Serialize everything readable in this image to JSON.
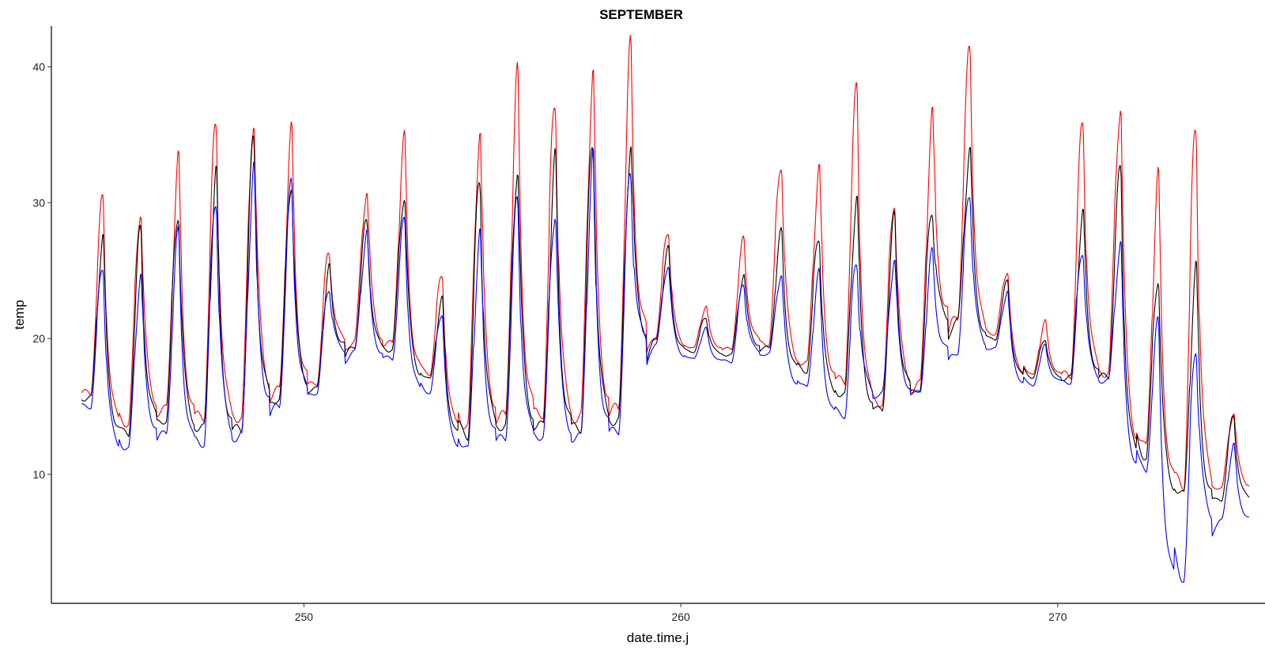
{
  "chart_data": {
    "type": "line",
    "title": "SEPTEMBER",
    "xlabel": "date.time.j",
    "ylabel": "temp",
    "xlim": [
      243.3,
      275.5
    ],
    "ylim": [
      0.5,
      43
    ],
    "x_ticks": [
      250,
      260,
      270
    ],
    "y_ticks": [
      10,
      20,
      30,
      40
    ],
    "grid": false,
    "legend": "none",
    "day_start": 244.1,
    "series": [
      {
        "color": "#ff0000",
        "daily_min": [
          16.0,
          13.7,
          14.8,
          14.2,
          14.2,
          16.2,
          16.7,
          19.8,
          19.6,
          17.4,
          13.5,
          14.3,
          14.5,
          14.2,
          14.8,
          20.2,
          19.3,
          19.2,
          19.7,
          18.1,
          16.8,
          15.2,
          16.6,
          21.6,
          20.3,
          17.3,
          17.3,
          17.5,
          12.0,
          9.2,
          9.0
        ],
        "daily_max": [
          30.2,
          30.3,
          32.9,
          35.6,
          37.2,
          34.8,
          26.4,
          31.4,
          34.3,
          24.8,
          36.1,
          38.6,
          38.2,
          40.4,
          40.6,
          28.2,
          22.4,
          27.1,
          33.5,
          32.6,
          37.9,
          30.9,
          36.3,
          41.0,
          25.2,
          21.2,
          35.7,
          38.3,
          31.4,
          35.6,
          14.8
        ],
        "x": [],
        "y": []
      },
      {
        "color": "#000000",
        "daily_min": [
          15.6,
          12.9,
          14.0,
          13.4,
          13.3,
          15.6,
          16.3,
          19.4,
          19.2,
          17.0,
          12.8,
          13.6,
          13.6,
          13.4,
          14.0,
          19.9,
          19.0,
          18.8,
          19.3,
          17.6,
          15.8,
          14.7,
          16.3,
          21.3,
          19.9,
          17.1,
          17.1,
          17.2,
          11.2,
          8.5,
          8.1
        ],
        "daily_max": [
          27.6,
          27.6,
          30.0,
          32.2,
          34.2,
          32.3,
          25.1,
          28.6,
          31.1,
          22.8,
          31.5,
          33.4,
          32.7,
          34.5,
          35.1,
          26.4,
          21.6,
          24.9,
          27.6,
          27.8,
          30.7,
          28.5,
          30.1,
          34.0,
          24.1,
          20.1,
          29.2,
          32.2,
          25.2,
          25.0,
          14.2
        ],
        "x": [],
        "y": []
      },
      {
        "color": "#0000ff",
        "daily_min": [
          15.0,
          11.8,
          13.0,
          12.3,
          12.8,
          15.0,
          16.0,
          19.0,
          18.5,
          16.0,
          11.8,
          12.7,
          12.8,
          12.7,
          13.2,
          19.6,
          18.5,
          18.3,
          18.9,
          16.4,
          14.3,
          16.0,
          16.0,
          19.0,
          19.3,
          16.5,
          16.8,
          16.9,
          10.2,
          2.3,
          6.6
        ],
        "daily_max": [
          25.6,
          25.0,
          27.3,
          31.0,
          33.0,
          30.9,
          24.1,
          27.8,
          28.5,
          22.2,
          27.5,
          30.0,
          30.2,
          33.0,
          32.0,
          25.7,
          20.7,
          24.0,
          25.0,
          24.6,
          25.8,
          26.2,
          26.0,
          31.0,
          23.6,
          19.4,
          26.8,
          27.2,
          21.0,
          20.3,
          12.2
        ],
        "x": [],
        "y": []
      }
    ]
  }
}
